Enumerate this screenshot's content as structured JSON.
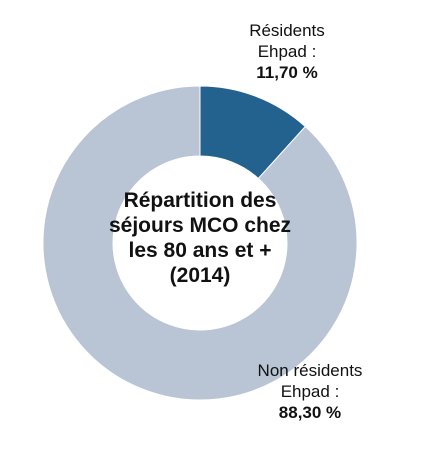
{
  "chart_data": {
    "type": "pie",
    "donut": true,
    "center_title": [
      "Répartition des",
      "séjours MCO chez",
      "les 80 ans et +",
      "(2014)"
    ],
    "slices": [
      {
        "label_lines": [
          "Résidents",
          "Ehpad :"
        ],
        "value": 11.7,
        "value_label": "11,70 %",
        "color": "#23628e"
      },
      {
        "label_lines": [
          "Non résidents",
          "Ehpad :"
        ],
        "value": 88.3,
        "value_label": "88,30 %",
        "color": "#b9c4d5"
      }
    ]
  }
}
